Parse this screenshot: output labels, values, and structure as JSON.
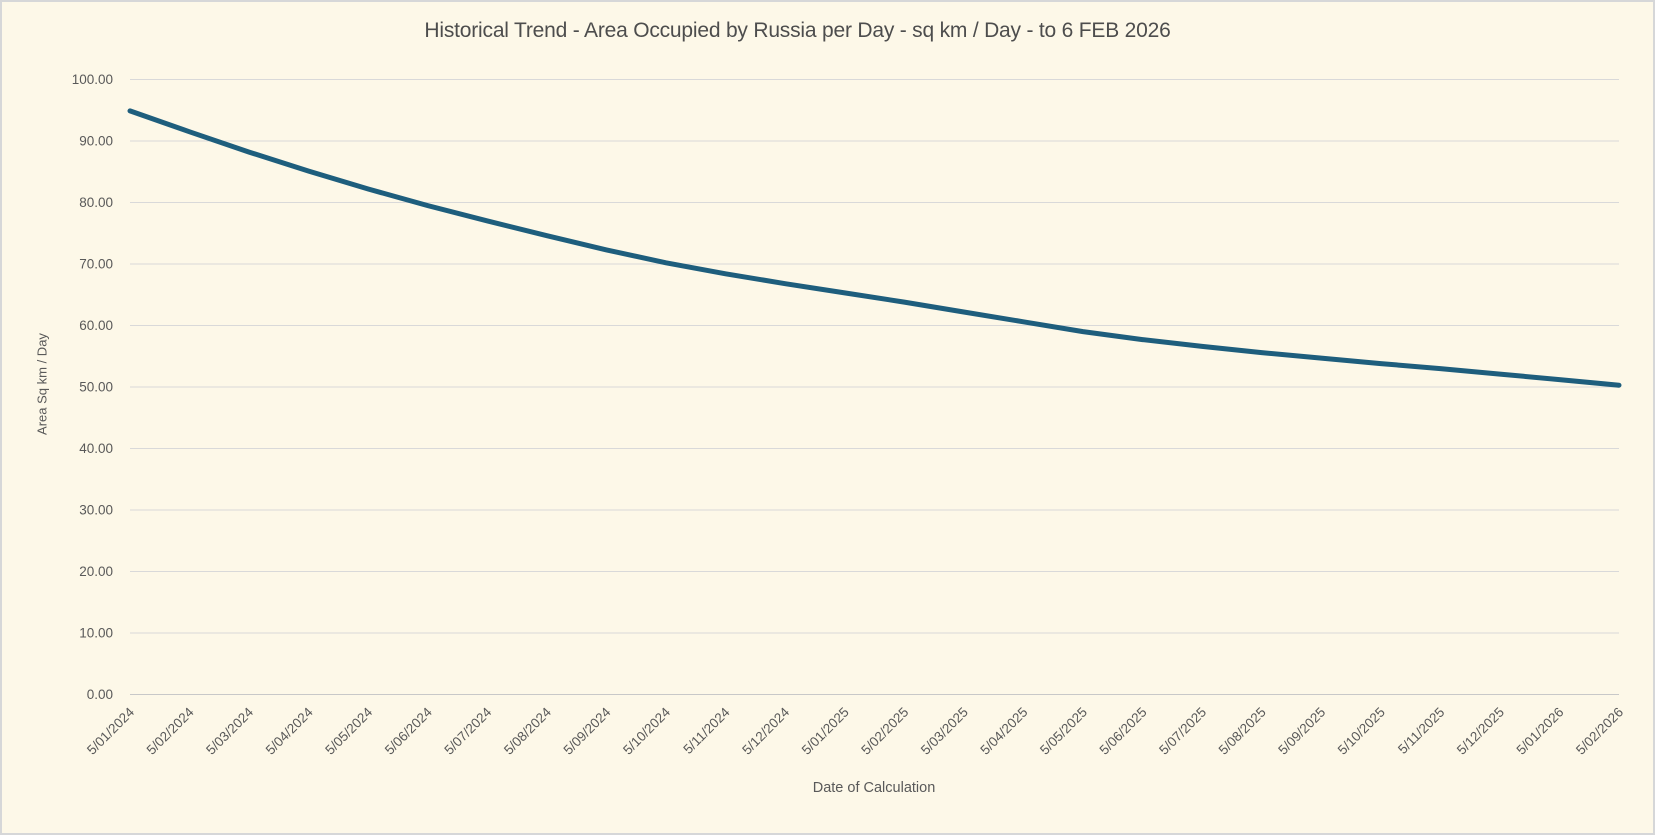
{
  "chart_data": {
    "type": "line",
    "title": "Historical Trend - Area Occupied by Russia per Day - sq km / Day - to 6 FEB 2026",
    "xlabel": "Date of Calculation",
    "ylabel": "Area Sq km / Day",
    "categories": [
      "5/01/2024",
      "5/02/2024",
      "5/03/2024",
      "5/04/2024",
      "5/05/2024",
      "5/06/2024",
      "5/07/2024",
      "5/08/2024",
      "5/09/2024",
      "5/10/2024",
      "5/11/2024",
      "5/12/2024",
      "5/01/2025",
      "5/02/2025",
      "5/03/2025",
      "5/04/2025",
      "5/05/2025",
      "5/06/2025",
      "5/07/2025",
      "5/08/2025",
      "5/09/2025",
      "5/10/2025",
      "5/11/2025",
      "5/12/2025",
      "5/01/2026",
      "5/02/2026"
    ],
    "values": [
      94.9,
      91.5,
      88.2,
      85.1,
      82.2,
      79.5,
      77.0,
      74.6,
      72.3,
      70.2,
      68.4,
      66.8,
      65.3,
      63.8,
      62.2,
      60.6,
      59.0,
      57.7,
      56.6,
      55.6,
      54.7,
      53.8,
      53.0,
      52.1,
      51.2,
      50.3
    ],
    "ylim": [
      0,
      100
    ],
    "ytick_step": 10,
    "y_tick_labels": [
      "0.00",
      "10.00",
      "20.00",
      "30.00",
      "40.00",
      "50.00",
      "60.00",
      "70.00",
      "80.00",
      "90.00",
      "100.00"
    ],
    "grid": true,
    "legend": "none",
    "x_tick_rotation_deg": 45,
    "colors": {
      "line": "#1e5e7d",
      "grid": "#d9d9d9",
      "axis": "#c8c8c8",
      "tick_text": "#595959",
      "title_text": "#4d4d4d",
      "background": "#fdf8e8",
      "border": "#d6d7d8"
    }
  }
}
